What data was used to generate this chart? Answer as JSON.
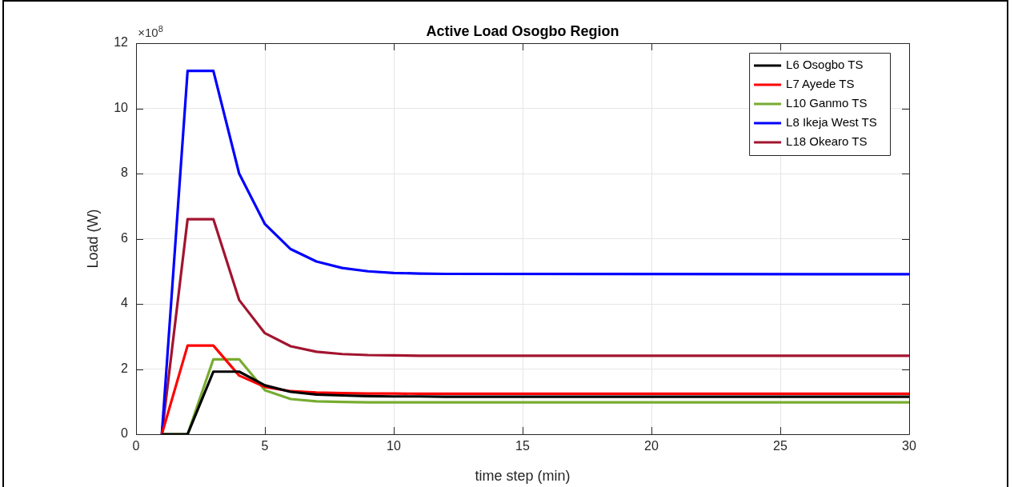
{
  "chart_data": {
    "type": "line",
    "title": "Active Load Osogbo Region",
    "xlabel": "time step (min)",
    "ylabel": "Load (W)",
    "annotations": [
      "×10$^{8}$"
    ],
    "x": [
      1,
      2,
      3,
      4,
      5,
      6,
      7,
      8,
      9,
      10,
      11,
      12,
      30
    ],
    "series": [
      {
        "name": "L6 Osogbo TS",
        "color": "#000000",
        "values": [
          0,
          0,
          1.92,
          1.92,
          1.5,
          1.3,
          1.22,
          1.19,
          1.17,
          1.16,
          1.16,
          1.15,
          1.15
        ]
      },
      {
        "name": "L7 Ayede TS",
        "color": "#ff0000",
        "values": [
          0,
          2.72,
          2.72,
          1.8,
          1.45,
          1.32,
          1.28,
          1.26,
          1.25,
          1.25,
          1.24,
          1.24,
          1.24
        ]
      },
      {
        "name": "L10 Ganmo TS",
        "color": "#77ac30",
        "values": [
          0,
          0,
          2.3,
          2.3,
          1.35,
          1.08,
          1.01,
          0.99,
          0.98,
          0.98,
          0.98,
          0.98,
          0.98
        ]
      },
      {
        "name": "L8 Ikeja West TS",
        "color": "#0000ff",
        "values": [
          0,
          11.15,
          11.15,
          8.0,
          6.45,
          5.68,
          5.3,
          5.1,
          5.0,
          4.95,
          4.93,
          4.92,
          4.91
        ]
      },
      {
        "name": "L18 Okearo TS",
        "color": "#a2142f",
        "values": [
          0,
          6.6,
          6.6,
          4.12,
          3.1,
          2.7,
          2.53,
          2.46,
          2.43,
          2.42,
          2.41,
          2.41,
          2.41
        ]
      }
    ],
    "xlim": [
      0,
      30
    ],
    "xticks": [
      0,
      5,
      10,
      15,
      20,
      25,
      30
    ],
    "ylim": [
      0,
      12
    ],
    "yticks": [
      0,
      2,
      4,
      6,
      8,
      10,
      12
    ],
    "grid": true,
    "legend": "top right",
    "line_style": "solid",
    "marker": "none"
  }
}
